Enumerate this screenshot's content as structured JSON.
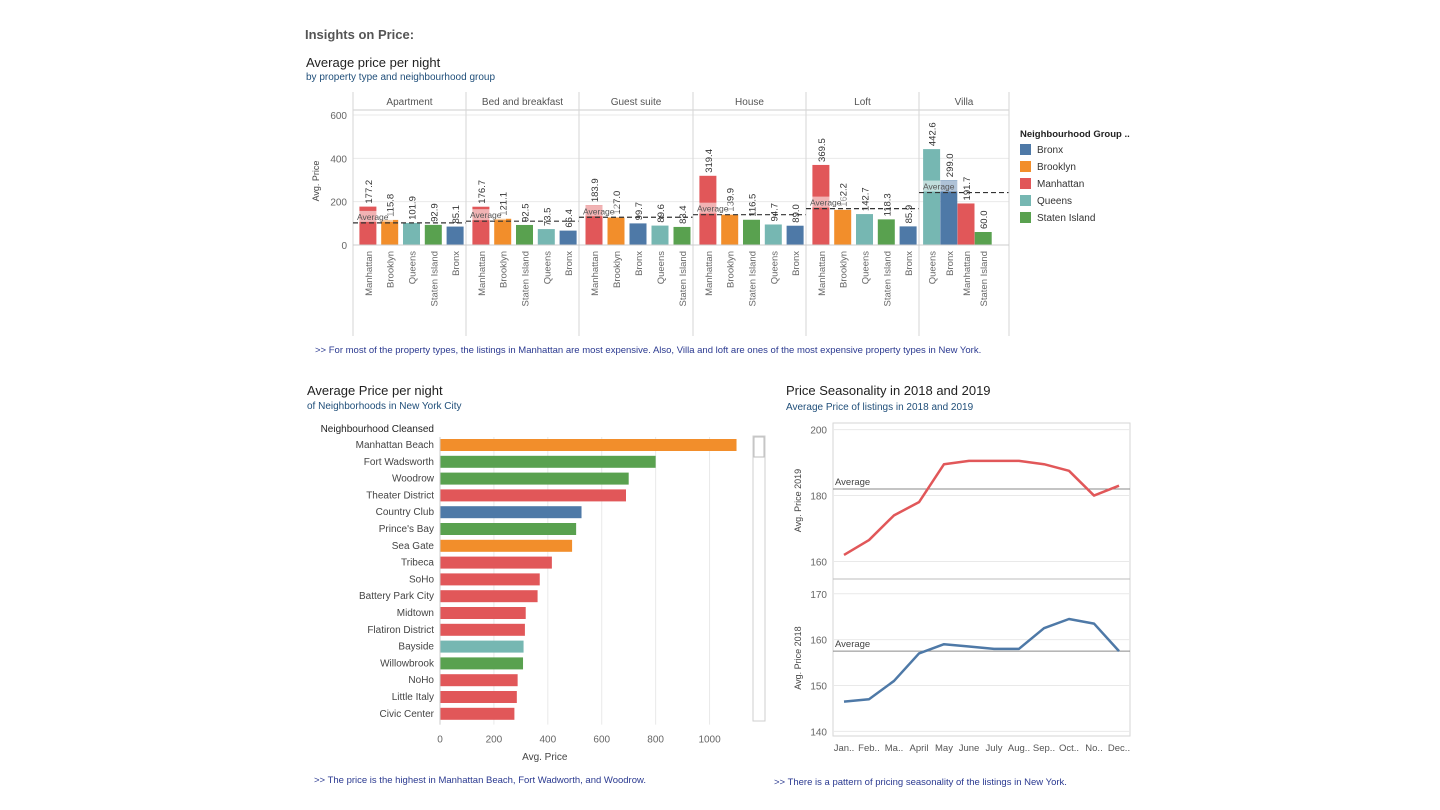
{
  "page_title": "Insights on Price:",
  "colors": {
    "Bronx": "#4e79a7",
    "Brooklyn": "#f28e2b",
    "Manhattan": "#e15759",
    "Queens": "#76b7b2",
    "Staten Island": "#59a14f",
    "line2019": "#e15759",
    "line2018": "#4e79a7",
    "grid": "#e9e9e9",
    "axis": "#cccccc"
  },
  "insights": [
    ">> For most of the property types, the listings in Manhattan are most expensive. Also, Villa and loft are ones of the most expensive property types in New York.",
    ">> The price is the highest in Manhattan Beach, Fort Wadworth, and Woodrow.",
    ">> There is a pattern of pricing seasonality of the listings in New York."
  ],
  "chart_data": [
    {
      "type": "bar",
      "title": "Average price per night",
      "subtitle": "by property type and neighbourhood group",
      "ylabel": "Avg. Price",
      "ylim": [
        0,
        600
      ],
      "yticks": [
        0,
        200,
        400,
        600
      ],
      "reference_line_label": "Average",
      "legend_title": "Neighbourhood Group ..",
      "legend": [
        "Bronx",
        "Brooklyn",
        "Manhattan",
        "Queens",
        "Staten Island"
      ],
      "legend_position": "right",
      "panels": [
        {
          "name": "Apartment",
          "average": 102,
          "bars": [
            {
              "group": "Manhattan",
              "value": 177.2,
              "label": "177.2"
            },
            {
              "group": "Brooklyn",
              "value": 115.8,
              "label": "115.8"
            },
            {
              "group": "Queens",
              "value": 101.9,
              "label": "101.9"
            },
            {
              "group": "Staten Island",
              "value": 92.9,
              "label": "92.9"
            },
            {
              "group": "Bronx",
              "value": 85.1,
              "label": "85.1"
            }
          ]
        },
        {
          "name": "Bed and breakfast",
          "average": 110,
          "bars": [
            {
              "group": "Manhattan",
              "value": 176.7,
              "label": "176.7"
            },
            {
              "group": "Brooklyn",
              "value": 121.1,
              "label": "121.1"
            },
            {
              "group": "Staten Island",
              "value": 92.5,
              "label": "92.5"
            },
            {
              "group": "Queens",
              "value": 73.5,
              "label": "73.5"
            },
            {
              "group": "Bronx",
              "value": 66.4,
              "label": "66.4"
            }
          ]
        },
        {
          "name": "Guest suite",
          "average": 128,
          "bars": [
            {
              "group": "Manhattan",
              "value": 183.9,
              "label": "183.9"
            },
            {
              "group": "Brooklyn",
              "value": 127.0,
              "label": "127.0"
            },
            {
              "group": "Bronx",
              "value": 99.7,
              "label": "99.7"
            },
            {
              "group": "Queens",
              "value": 89.6,
              "label": "89.6"
            },
            {
              "group": "Staten Island",
              "value": 83.4,
              "label": "83.4"
            }
          ]
        },
        {
          "name": "House",
          "average": 140,
          "bars": [
            {
              "group": "Manhattan",
              "value": 319.4,
              "label": "319.4"
            },
            {
              "group": "Brooklyn",
              "value": 139.9,
              "label": "139.9"
            },
            {
              "group": "Staten Island",
              "value": 116.5,
              "label": "116.5"
            },
            {
              "group": "Queens",
              "value": 94.7,
              "label": "94.7"
            },
            {
              "group": "Bronx",
              "value": 89.0,
              "label": "89.0"
            }
          ]
        },
        {
          "name": "Loft",
          "average": 168,
          "bars": [
            {
              "group": "Manhattan",
              "value": 369.5,
              "label": "369.5"
            },
            {
              "group": "Brooklyn",
              "value": 162.2,
              "label": "162.2"
            },
            {
              "group": "Queens",
              "value": 142.7,
              "label": "142.7"
            },
            {
              "group": "Staten Island",
              "value": 118.3,
              "label": "118.3"
            },
            {
              "group": "Bronx",
              "value": 85.9,
              "label": "85.9"
            }
          ]
        },
        {
          "name": "Villa",
          "average": 242,
          "bars": [
            {
              "group": "Queens",
              "value": 442.6,
              "label": "442.6"
            },
            {
              "group": "Bronx",
              "value": 299.0,
              "label": "299.0"
            },
            {
              "group": "Manhattan",
              "value": 191.7,
              "label": "191.7"
            },
            {
              "group": "Staten Island",
              "value": 60.0,
              "label": "60.0"
            }
          ]
        }
      ]
    },
    {
      "type": "bar",
      "orientation": "horizontal",
      "title": "Average Price per night",
      "subtitle": "of Neighborhoods in New York City",
      "row_header": "Neighbourhood Cleansed",
      "xlabel": "Avg. Price",
      "xlim": [
        0,
        1150
      ],
      "xticks": [
        0,
        200,
        400,
        600,
        800,
        1000
      ],
      "categories": [
        "Manhattan Beach",
        "Fort Wadsworth",
        "Woodrow",
        "Theater District",
        "Country Club",
        "Prince's Bay",
        "Sea Gate",
        "Tribeca",
        "SoHo",
        "Battery Park City",
        "Midtown",
        "Flatiron District",
        "Bayside",
        "Willowbrook",
        "NoHo",
        "Little Italy",
        "Civic Center"
      ],
      "values": [
        1100,
        800,
        700,
        690,
        525,
        505,
        490,
        415,
        370,
        362,
        318,
        315,
        310,
        308,
        288,
        285,
        276
      ],
      "groups": [
        "Brooklyn",
        "Staten Island",
        "Staten Island",
        "Manhattan",
        "Bronx",
        "Staten Island",
        "Brooklyn",
        "Manhattan",
        "Manhattan",
        "Manhattan",
        "Manhattan",
        "Manhattan",
        "Queens",
        "Staten Island",
        "Manhattan",
        "Manhattan",
        "Manhattan"
      ]
    },
    {
      "type": "line",
      "title": "Price Seasonality in 2018 and 2019",
      "subtitle": "Average Price of listings in 2018 and 2019",
      "categories": [
        "Jan..",
        "Feb..",
        "Ma..",
        "April",
        "May",
        "June",
        "July",
        "Aug..",
        "Sep..",
        "Oct..",
        "No..",
        "Dec.."
      ],
      "reference_line_label": "Average",
      "series": [
        {
          "name": "Avg. Price 2019",
          "ylim": [
            155,
            202
          ],
          "yticks": [
            160,
            180,
            200
          ],
          "average": 182,
          "values": [
            162,
            166.5,
            174,
            178,
            189.5,
            190.5,
            190.5,
            190.5,
            189.5,
            187.5,
            180,
            183
          ]
        },
        {
          "name": "Avg. Price 2018",
          "ylim": [
            139,
            173
          ],
          "yticks": [
            140,
            150,
            160,
            170
          ],
          "average": 157.5,
          "values": [
            146.5,
            147,
            151,
            157,
            159,
            158.5,
            158,
            158,
            162.5,
            164.5,
            163.5,
            157.5
          ]
        }
      ]
    }
  ]
}
